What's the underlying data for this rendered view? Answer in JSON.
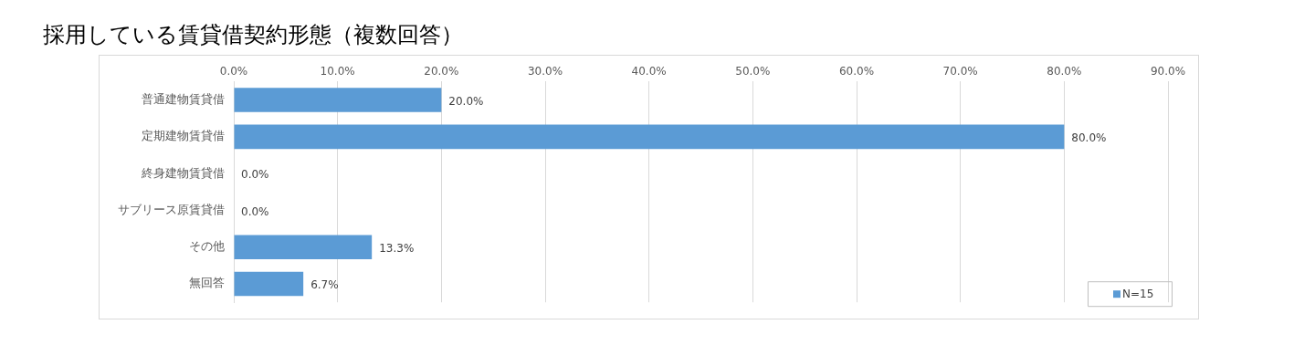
{
  "chart_data": {
    "type": "bar",
    "orientation": "horizontal",
    "title": "採用している賃貸借契約形態（複数回答）",
    "categories": [
      "普通建物賃貸借",
      "定期建物賃貸借",
      "終身建物賃貸借",
      "サブリース原賃貸借",
      "その他",
      "無回答"
    ],
    "series": [
      {
        "name": "N=15",
        "color": "#5b9bd5",
        "values": [
          20.0,
          80.0,
          0.0,
          0.0,
          13.3,
          6.7
        ],
        "value_labels": [
          "20.0%",
          "80.0%",
          "0.0%",
          "0.0%",
          "13.3%",
          "6.7%"
        ]
      }
    ],
    "xlim": [
      0,
      90
    ],
    "xticks": [
      {
        "value": 0,
        "label": "0.0%"
      },
      {
        "value": 10,
        "label": "10.0%"
      },
      {
        "value": 20,
        "label": "20.0%"
      },
      {
        "value": 30,
        "label": "30.0%"
      },
      {
        "value": 40,
        "label": "40.0%"
      },
      {
        "value": 50,
        "label": "50.0%"
      },
      {
        "value": 60,
        "label": "60.0%"
      },
      {
        "value": 70,
        "label": "70.0%"
      },
      {
        "value": 80,
        "label": "80.0%"
      },
      {
        "value": 90,
        "label": "90.0%"
      }
    ],
    "grid": "x",
    "legend": "bottom right"
  }
}
